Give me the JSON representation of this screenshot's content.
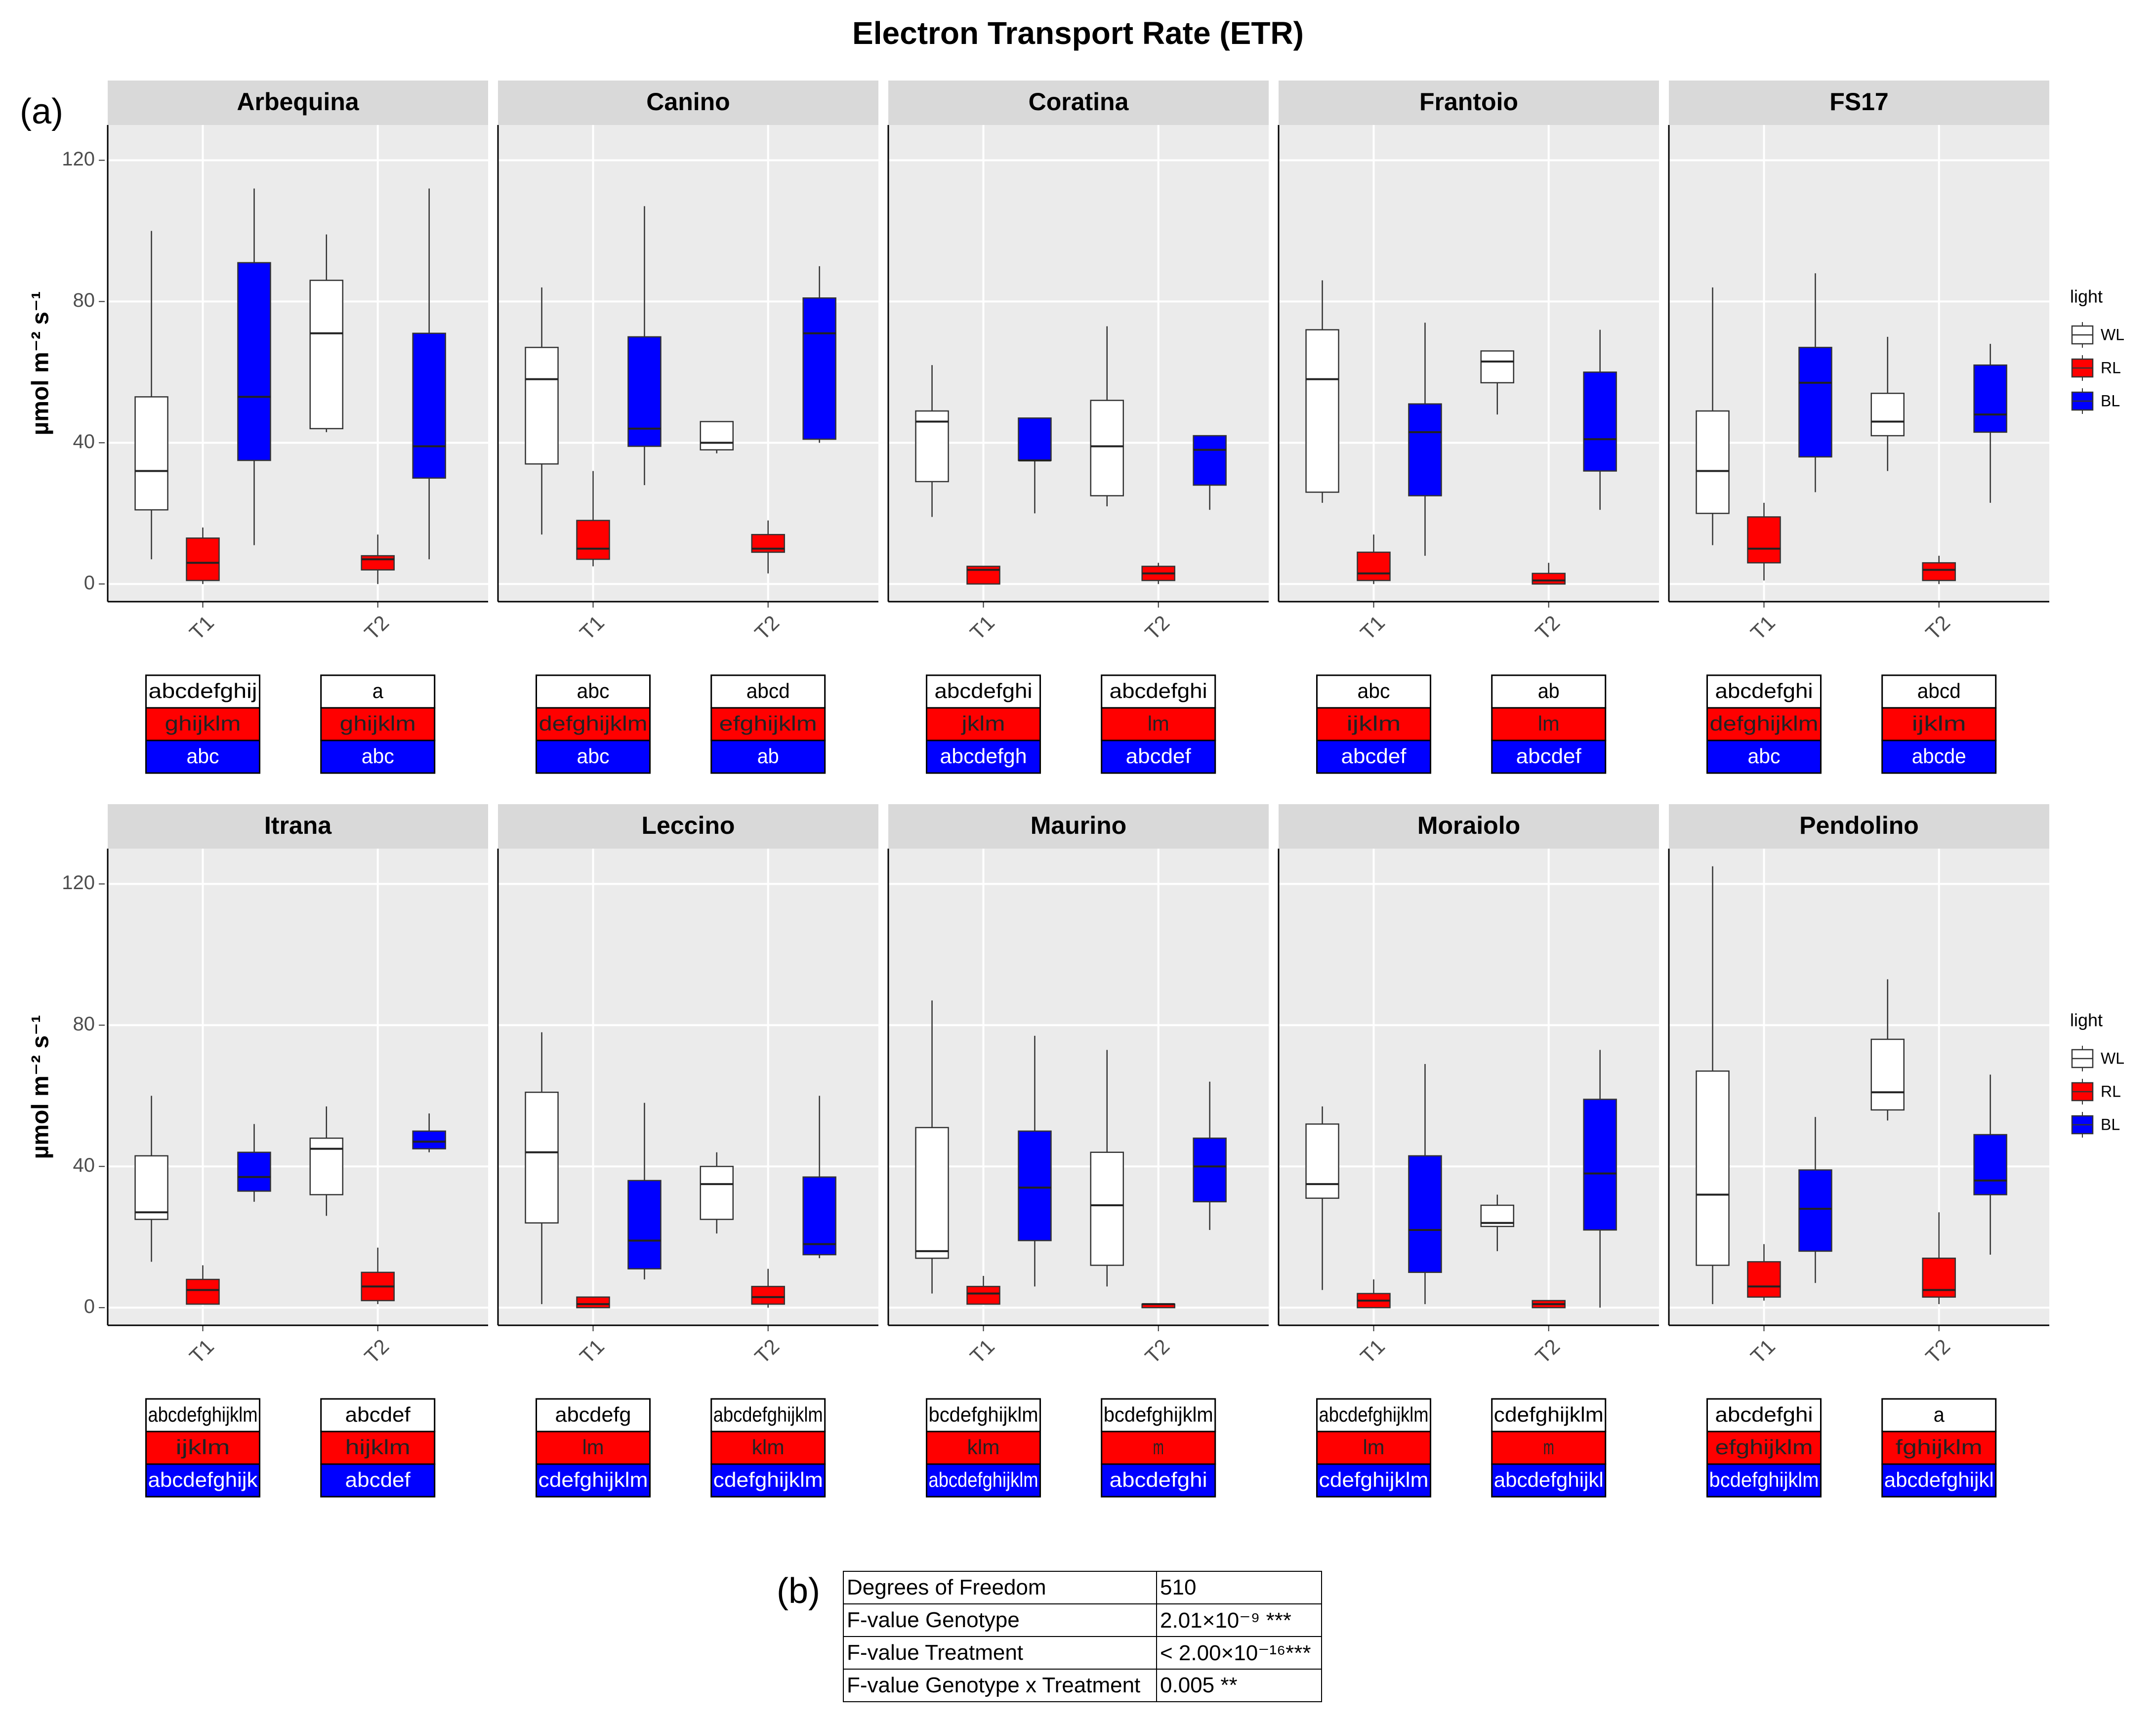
{
  "title": "Electron Transport Rate (ETR)",
  "panel_a_label": "(a)",
  "panel_b_label": "(b)",
  "colors": {
    "WL": "#ffffff",
    "RL": "#ff0000",
    "BL": "#0000ff",
    "panel_bg": "#ebebeb",
    "strip_bg": "#d9d9d9"
  },
  "legend": {
    "title": "light",
    "items": [
      "WL",
      "RL",
      "BL"
    ]
  },
  "stats_table": [
    {
      "label": "Degrees of Freedom",
      "value": "510"
    },
    {
      "label": "F-value Genotype",
      "value": "2.01×10⁻⁹ ***"
    },
    {
      "label": "F-value Treatment",
      "value": "< 2.00×10⁻¹⁶***"
    },
    {
      "label": "F-value Genotype x Treatment",
      "value": "0.005 **"
    }
  ],
  "chart_data": {
    "type": "boxplot",
    "title": "Electron Transport Rate (ETR)",
    "ylabel": "µmol m⁻² s⁻¹",
    "ylim": [
      -5,
      130
    ],
    "yticks": [
      0,
      40,
      80,
      120
    ],
    "categories": [
      "T1",
      "T2"
    ],
    "series_order": [
      "WL",
      "RL",
      "BL"
    ],
    "box_fields": [
      "min",
      "q1",
      "median",
      "q3",
      "max"
    ],
    "facets": [
      {
        "name": "Arbequina",
        "boxes": {
          "T1": {
            "WL": [
              7,
              21,
              32,
              53,
              100
            ],
            "RL": [
              0,
              1,
              6,
              13,
              16
            ],
            "BL": [
              11,
              35,
              53,
              91,
              112
            ]
          },
          "T2": {
            "WL": [
              43,
              44,
              71,
              86,
              99
            ],
            "RL": [
              0,
              4,
              7,
              8,
              14
            ],
            "BL": [
              7,
              30,
              39,
              71,
              112
            ]
          }
        },
        "letters": {
          "T1": [
            "abcdefghij",
            "ghijklm",
            "abc"
          ],
          "T2": [
            "a",
            "ghijklm",
            "abc"
          ]
        }
      },
      {
        "name": "Canino",
        "boxes": {
          "T1": {
            "WL": [
              14,
              34,
              58,
              67,
              84
            ],
            "RL": [
              5,
              7,
              10,
              18,
              32
            ],
            "BL": [
              28,
              39,
              44,
              70,
              107
            ]
          },
          "T2": {
            "WL": [
              37,
              38,
              40,
              46,
              46
            ],
            "RL": [
              3,
              9,
              10,
              14,
              18
            ],
            "BL": [
              40,
              41,
              71,
              81,
              90
            ]
          }
        },
        "letters": {
          "T1": [
            "abc",
            "defghijklm",
            "abc"
          ],
          "T2": [
            "abcd",
            "efghijklm",
            "ab"
          ]
        }
      },
      {
        "name": "Coratina",
        "boxes": {
          "T1": {
            "WL": [
              19,
              29,
              46,
              49,
              62
            ],
            "RL": [
              0,
              0,
              4,
              5,
              5
            ],
            "BL": [
              20,
              35,
              35,
              47,
              47
            ]
          },
          "T2": {
            "WL": [
              22,
              25,
              39,
              52,
              73
            ],
            "RL": [
              0,
              1,
              3,
              5,
              6
            ],
            "BL": [
              21,
              28,
              38,
              42,
              42
            ]
          }
        },
        "letters": {
          "T1": [
            "abcdefghi",
            "jklm",
            "abcdefgh"
          ],
          "T2": [
            "abcdefghi",
            "lm",
            "abcdef"
          ]
        }
      },
      {
        "name": "Frantoio",
        "boxes": {
          "T1": {
            "WL": [
              23,
              26,
              58,
              72,
              86
            ],
            "RL": [
              0,
              1,
              3,
              9,
              14
            ],
            "BL": [
              8,
              25,
              43,
              51,
              74
            ]
          },
          "T2": {
            "WL": [
              48,
              57,
              63,
              66,
              66
            ],
            "RL": [
              0,
              0,
              1,
              3,
              6
            ],
            "BL": [
              21,
              32,
              41,
              60,
              72
            ]
          }
        },
        "letters": {
          "T1": [
            "abc",
            "ijklm",
            "abcdef"
          ],
          "T2": [
            "ab",
            "lm",
            "abcdef"
          ]
        }
      },
      {
        "name": "FS17",
        "boxes": {
          "T1": {
            "WL": [
              11,
              20,
              32,
              49,
              84
            ],
            "RL": [
              1,
              6,
              10,
              19,
              23
            ],
            "BL": [
              26,
              36,
              57,
              67,
              88
            ]
          },
          "T2": {
            "WL": [
              32,
              42,
              46,
              54,
              70
            ],
            "RL": [
              0,
              1,
              4,
              6,
              8
            ],
            "BL": [
              23,
              43,
              48,
              62,
              68
            ]
          }
        },
        "letters": {
          "T1": [
            "abcdefghi",
            "defghijklm",
            "abc"
          ],
          "T2": [
            "abcd",
            "ijklm",
            "abcde"
          ]
        }
      },
      {
        "name": "Itrana",
        "boxes": {
          "T1": {
            "WL": [
              13,
              25,
              27,
              43,
              60
            ],
            "RL": [
              1,
              1,
              5,
              8,
              12
            ],
            "BL": [
              30,
              33,
              37,
              44,
              52
            ]
          },
          "T2": {
            "WL": [
              26,
              32,
              45,
              48,
              57
            ],
            "RL": [
              1,
              2,
              6,
              10,
              17
            ],
            "BL": [
              44,
              45,
              47,
              50,
              55
            ]
          }
        },
        "letters": {
          "T1": [
            "abcdefghijklm",
            "ijklm",
            "abcdefghijk"
          ],
          "T2": [
            "abcdef",
            "hijklm",
            "abcdef"
          ]
        }
      },
      {
        "name": "Leccino",
        "boxes": {
          "T1": {
            "WL": [
              1,
              24,
              44,
              61,
              78
            ],
            "RL": [
              0,
              0,
              1,
              3,
              3
            ],
            "BL": [
              8,
              11,
              19,
              36,
              58
            ]
          },
          "T2": {
            "WL": [
              21,
              25,
              35,
              40,
              44
            ],
            "RL": [
              0,
              1,
              3,
              6,
              11
            ],
            "BL": [
              14,
              15,
              18,
              37,
              60
            ]
          }
        },
        "letters": {
          "T1": [
            "abcdefg",
            "lm",
            "cdefghijklm"
          ],
          "T2": [
            "abcdefghijklm",
            "klm",
            "cdefghijklm"
          ]
        }
      },
      {
        "name": "Maurino",
        "boxes": {
          "T1": {
            "WL": [
              4,
              14,
              16,
              51,
              87
            ],
            "RL": [
              1,
              1,
              4,
              6,
              9
            ],
            "BL": [
              6,
              19,
              34,
              50,
              77
            ]
          },
          "T2": {
            "WL": [
              6,
              12,
              29,
              44,
              73
            ],
            "RL": [
              0,
              0,
              1,
              1,
              1
            ],
            "BL": [
              22,
              30,
              40,
              48,
              64
            ]
          }
        },
        "letters": {
          "T1": [
            "bcdefghijklm",
            "klm",
            "abcdefghijklm"
          ],
          "T2": [
            "bcdefghijklm",
            "m",
            "abcdefghi"
          ]
        }
      },
      {
        "name": "Moraiolo",
        "boxes": {
          "T1": {
            "WL": [
              5,
              31,
              35,
              52,
              57
            ],
            "RL": [
              0,
              0,
              2,
              4,
              8
            ],
            "BL": [
              1,
              10,
              22,
              43,
              69
            ]
          },
          "T2": {
            "WL": [
              16,
              23,
              24,
              29,
              32
            ],
            "RL": [
              0,
              0,
              1,
              2,
              2
            ],
            "BL": [
              0,
              22,
              38,
              59,
              73
            ]
          }
        },
        "letters": {
          "T1": [
            "abcdefghijklm",
            "lm",
            "cdefghijklm"
          ],
          "T2": [
            "cdefghijklm",
            "m",
            "abcdefghijkl"
          ]
        }
      },
      {
        "name": "Pendolino",
        "boxes": {
          "T1": {
            "WL": [
              1,
              12,
              32,
              67,
              125
            ],
            "RL": [
              2,
              3,
              6,
              13,
              18
            ],
            "BL": [
              7,
              16,
              28,
              39,
              54
            ]
          },
          "T2": {
            "WL": [
              53,
              56,
              61,
              76,
              93
            ],
            "RL": [
              1,
              3,
              5,
              14,
              27
            ],
            "BL": [
              15,
              32,
              36,
              49,
              66
            ]
          }
        },
        "letters": {
          "T1": [
            "abcdefghi",
            "efghijklm",
            "bcdefghijklm"
          ],
          "T2": [
            "a",
            "fghijklm",
            "abcdefghijkl"
          ]
        }
      }
    ]
  }
}
